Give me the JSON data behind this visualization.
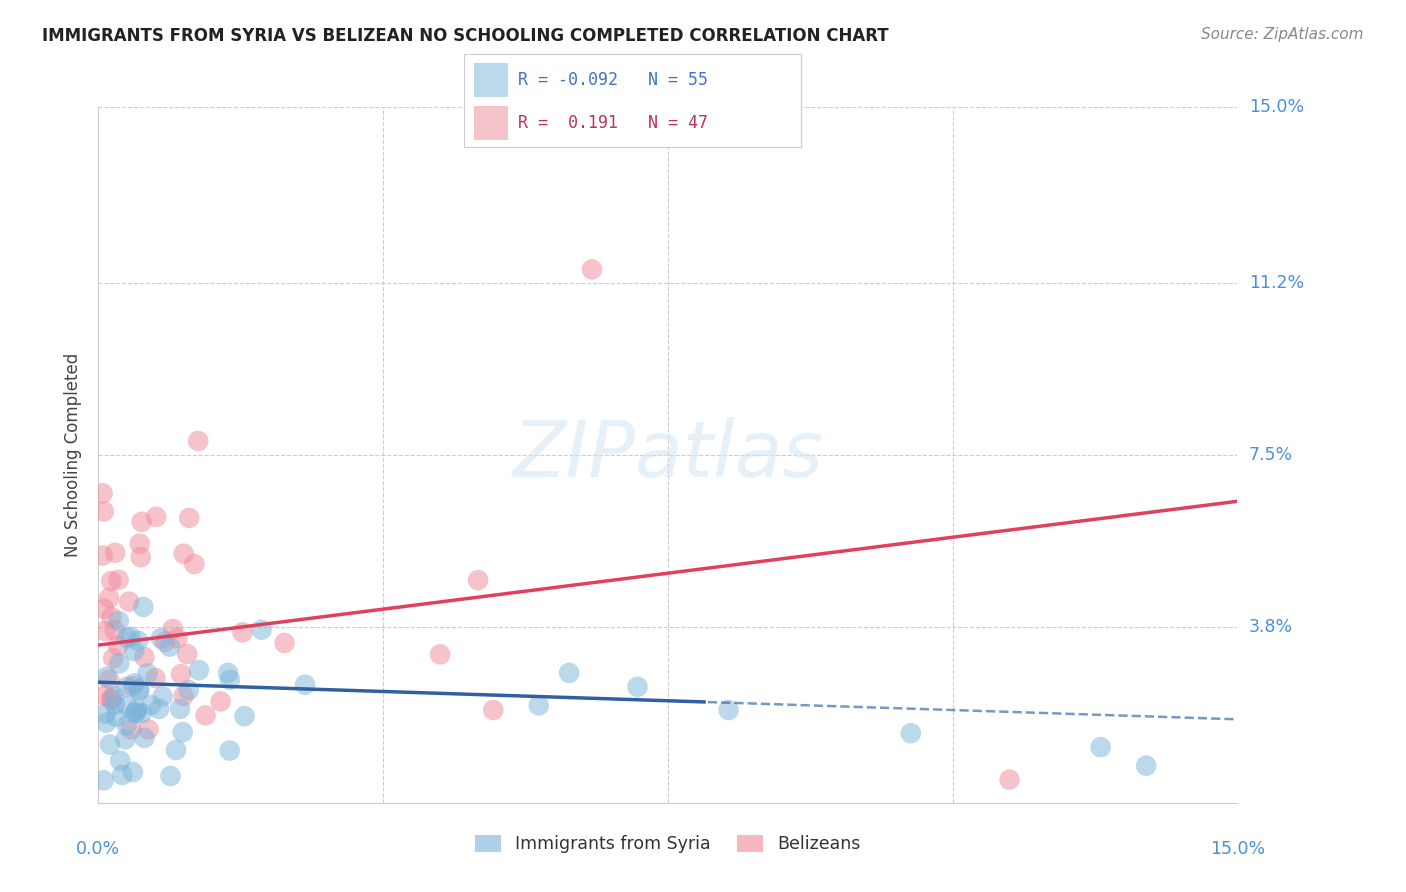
{
  "title": "IMMIGRANTS FROM SYRIA VS BELIZEAN NO SCHOOLING COMPLETED CORRELATION CHART",
  "source": "Source: ZipAtlas.com",
  "ylabel": "No Schooling Completed",
  "xlim": [
    0.0,
    15.0
  ],
  "ylim": [
    0.0,
    15.0
  ],
  "ytick_vals": [
    0.0,
    3.8,
    7.5,
    11.2,
    15.0
  ],
  "ytick_labels": [
    "",
    "3.8%",
    "7.5%",
    "11.2%",
    "15.0%"
  ],
  "xtick_vals": [
    0.0,
    3.75,
    7.5,
    11.25,
    15.0
  ],
  "axis_color": "#4a90d9",
  "grid_color": "#c8c8c8",
  "background_color": "#ffffff",
  "syria_color": "#7ab3d9",
  "belize_color": "#f08898",
  "syria_line_color": "#3060a0",
  "belize_line_color": "#e04060",
  "syria_r": -0.092,
  "syria_n": 55,
  "belize_r": 0.191,
  "belize_n": 47,
  "legend_labels": [
    "Immigrants from Syria",
    "Belizeans"
  ],
  "watermark": "ZIPatlas",
  "syria_line_start_y": 2.6,
  "syria_line_end_y": 1.8,
  "syria_solid_end_x": 8.0,
  "belize_line_start_y": 3.4,
  "belize_line_end_y": 6.5
}
